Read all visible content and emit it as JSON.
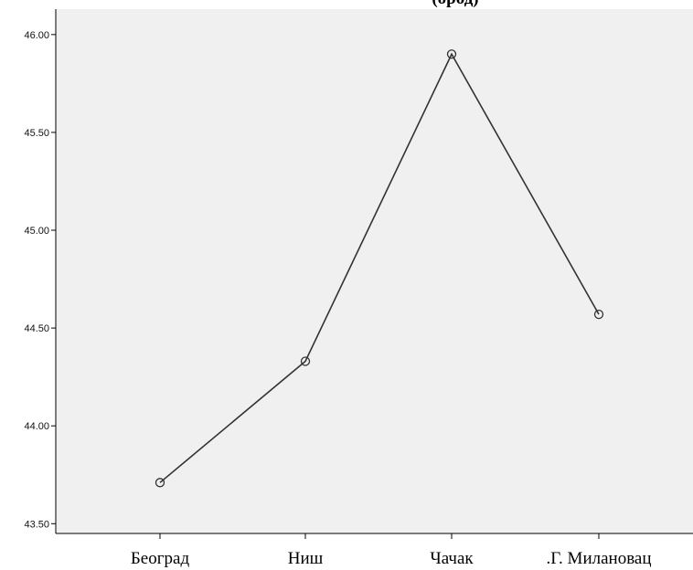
{
  "chart_data": {
    "type": "line",
    "title": "(ород)",
    "categories": [
      "Београд",
      "Ниш",
      "Чачак",
      ".Г. Милановац"
    ],
    "values": [
      43.71,
      44.33,
      45.9,
      44.57
    ],
    "ylim": [
      43.45,
      46.13
    ],
    "yticks": [
      "43.50",
      "44.00",
      "44.50",
      "45.00",
      "45.50",
      "46.00"
    ],
    "ytick_values": [
      43.5,
      44.0,
      44.5,
      45.0,
      45.5,
      46.0
    ],
    "grid": false,
    "legend": "none",
    "colors": {
      "plot_bg": "#f0f0f0",
      "line": "#333333",
      "axis": "#000000"
    }
  }
}
